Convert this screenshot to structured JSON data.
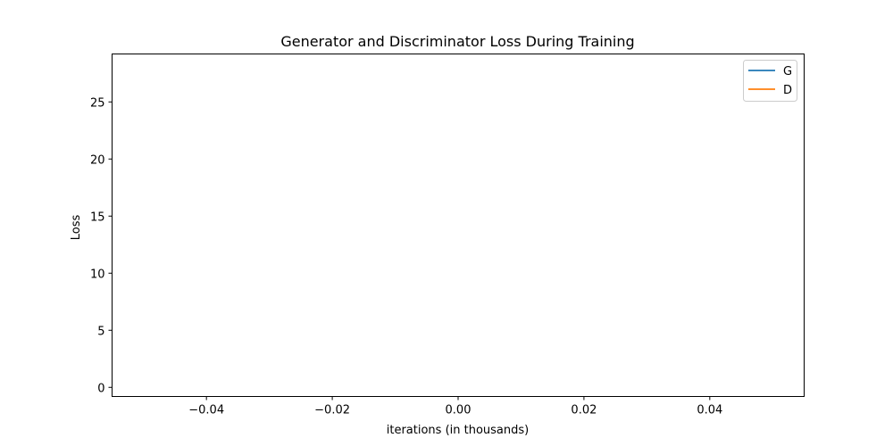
{
  "chart_data": {
    "type": "line",
    "title": "Generator and Discriminator Loss During Training",
    "xlabel": "iterations (in thousands)",
    "ylabel": "Loss",
    "xlim": [
      -0.055,
      0.055
    ],
    "ylim": [
      -0.8,
      29.2
    ],
    "x_ticks": [
      -0.04,
      -0.02,
      0.0,
      0.02,
      0.04
    ],
    "x_tick_labels": [
      "−0.04",
      "−0.02",
      "0.00",
      "0.02",
      "0.04"
    ],
    "y_ticks": [
      0,
      5,
      10,
      15,
      20,
      25
    ],
    "y_tick_labels": [
      "0",
      "5",
      "10",
      "15",
      "20",
      "25"
    ],
    "grid": false,
    "legend_position": "top-right",
    "series": [
      {
        "name": "G",
        "color": "#1f77b4",
        "x": [],
        "y": []
      },
      {
        "name": "D",
        "color": "#ff7f0e",
        "x": [],
        "y": []
      }
    ]
  }
}
